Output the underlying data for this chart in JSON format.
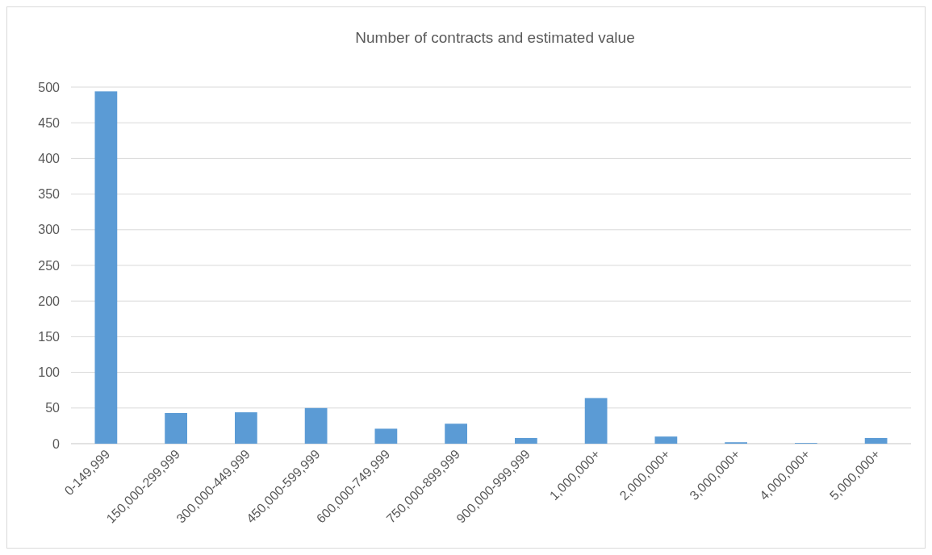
{
  "chart_data": {
    "type": "bar",
    "title": "Number of contracts and estimated value",
    "categories": [
      "0-149,999",
      "150,000-299,999",
      "300,000-449,999",
      "450,000-599,999",
      "600,000-749,999",
      "750,000-899,999",
      "900,000-999,999",
      "1,000,000+",
      "2,000,000+",
      "3,000,000+",
      "4,000,000+",
      "5,000,000+"
    ],
    "values": [
      494,
      43,
      44,
      50,
      21,
      28,
      8,
      64,
      10,
      2,
      1,
      8
    ],
    "color": "#5b9bd5",
    "ylim": [
      0,
      500
    ],
    "yticks": [
      0,
      50,
      100,
      150,
      200,
      250,
      300,
      350,
      400,
      450,
      500
    ],
    "grid": "y"
  }
}
